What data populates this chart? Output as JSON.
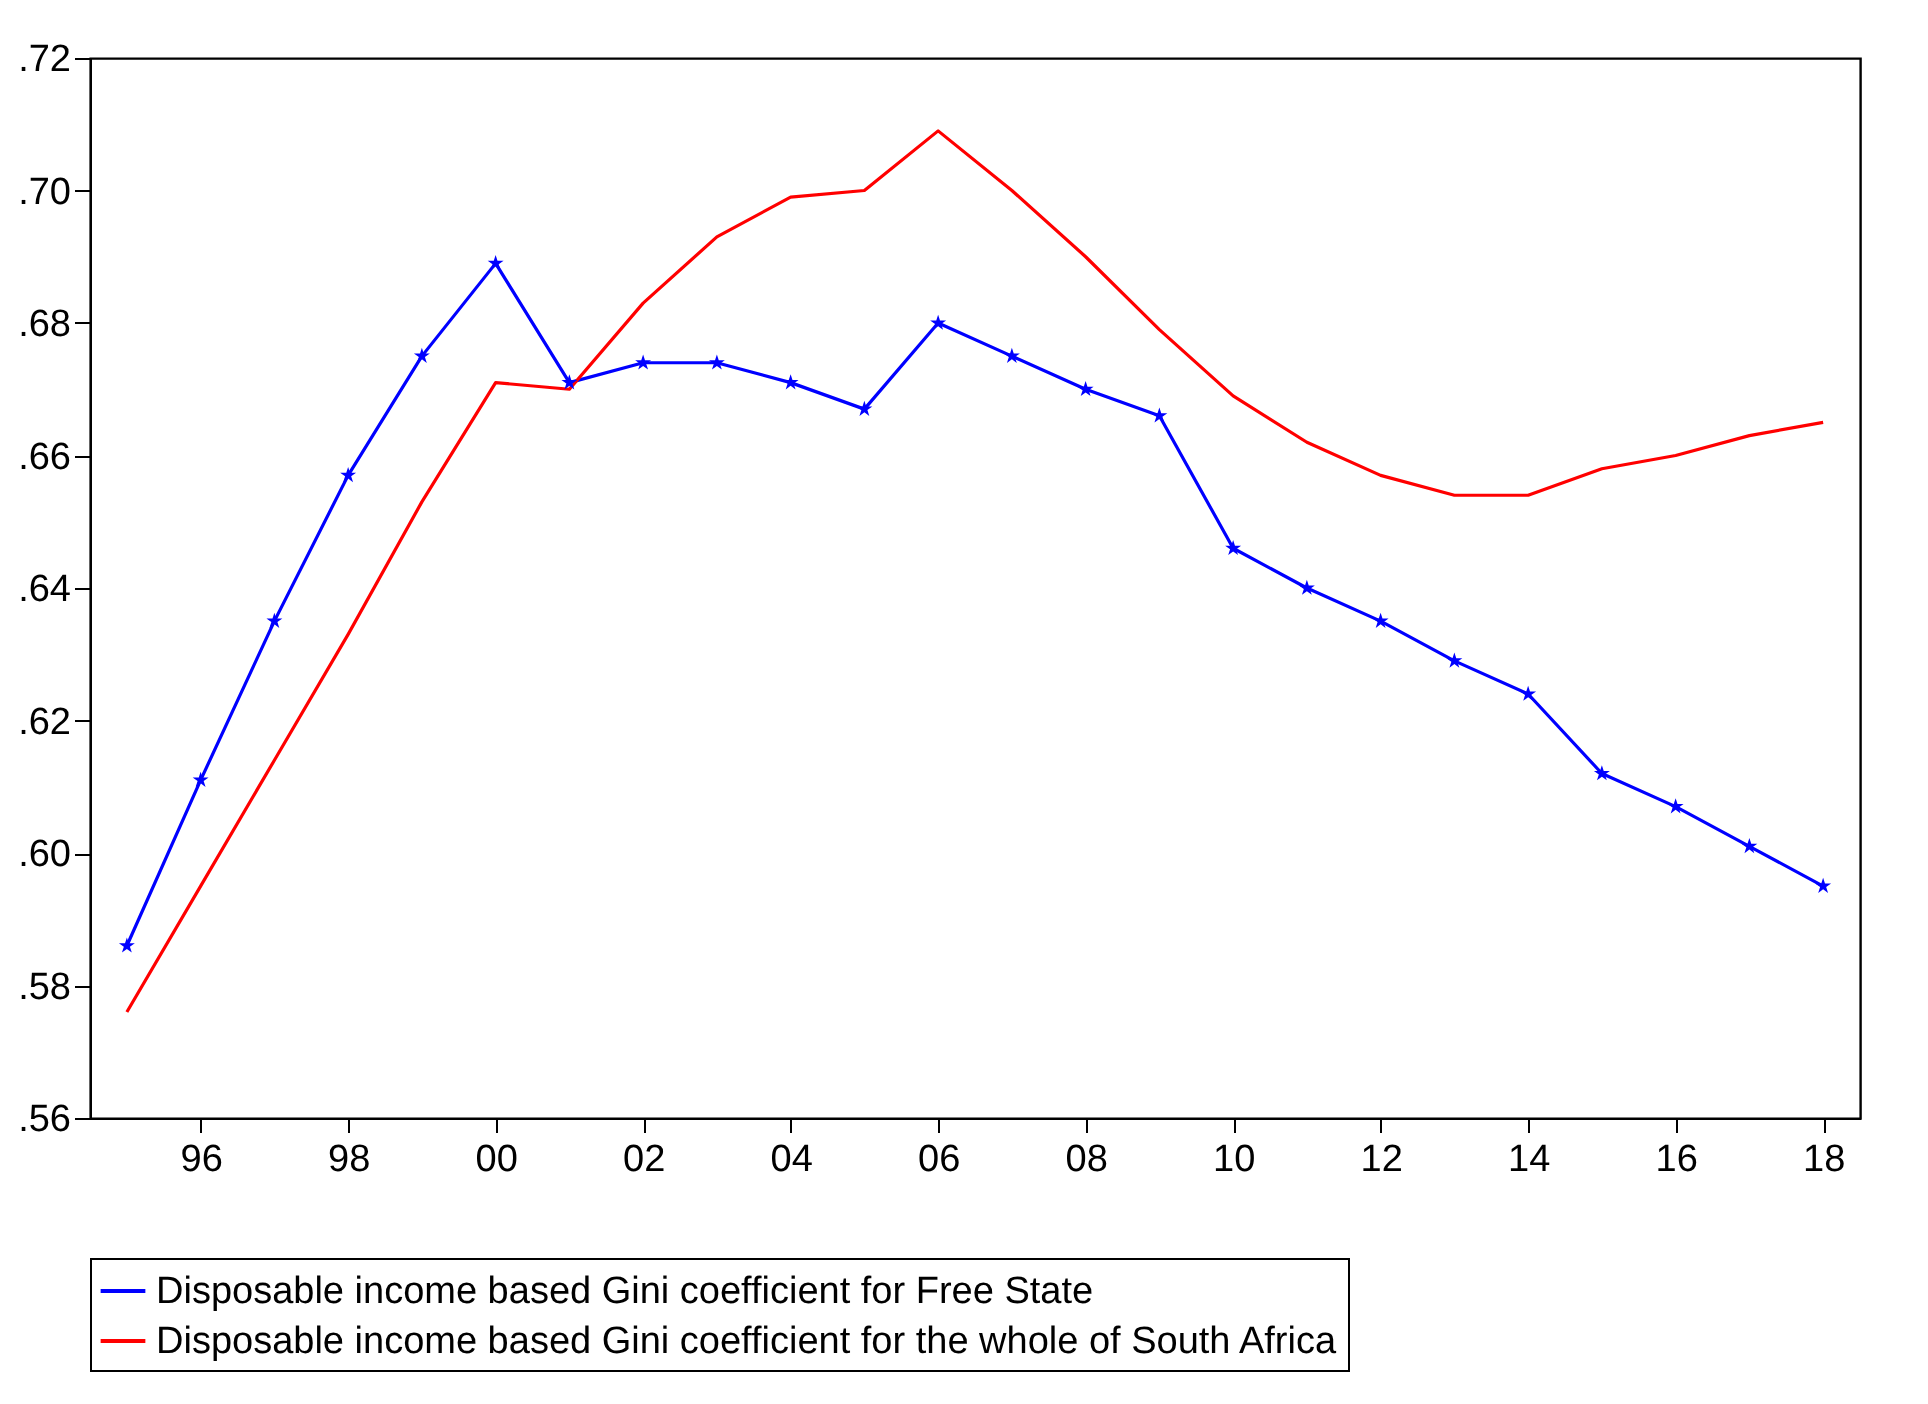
{
  "chart_data": {
    "type": "line",
    "x": [
      1995,
      1996,
      1997,
      1998,
      1999,
      2000,
      2001,
      2002,
      2003,
      2004,
      2005,
      2006,
      2007,
      2008,
      2009,
      2010,
      2011,
      2012,
      2013,
      2014,
      2015,
      2016,
      2017,
      2018
    ],
    "series": [
      {
        "name": "Disposable income based Gini coefficient for Free State",
        "color": "#0000ff",
        "marker": "star",
        "values": [
          0.586,
          0.611,
          0.635,
          0.657,
          0.675,
          0.689,
          0.671,
          0.674,
          0.674,
          0.671,
          0.667,
          0.68,
          0.675,
          0.67,
          0.666,
          0.646,
          0.64,
          0.635,
          0.629,
          0.624,
          0.612,
          0.607,
          0.601,
          0.595
        ]
      },
      {
        "name": "Disposable income based Gini coefficient for the whole of South Africa",
        "color": "#ff0000",
        "marker": "none",
        "values": [
          0.576,
          0.595,
          0.614,
          0.633,
          0.653,
          0.671,
          0.67,
          0.683,
          0.693,
          0.699,
          0.7,
          0.709,
          0.7,
          0.69,
          0.679,
          0.669,
          0.662,
          0.657,
          0.654,
          0.654,
          0.658,
          0.66,
          0.663,
          0.665
        ]
      }
    ],
    "xlim": [
      1994.5,
      2018.5
    ],
    "xticks": [
      {
        "value": 1996,
        "label": "96"
      },
      {
        "value": 1998,
        "label": "98"
      },
      {
        "value": 2000,
        "label": "00"
      },
      {
        "value": 2002,
        "label": "02"
      },
      {
        "value": 2004,
        "label": "04"
      },
      {
        "value": 2006,
        "label": "06"
      },
      {
        "value": 2008,
        "label": "08"
      },
      {
        "value": 2010,
        "label": "10"
      },
      {
        "value": 2012,
        "label": "12"
      },
      {
        "value": 2014,
        "label": "14"
      },
      {
        "value": 2016,
        "label": "16"
      },
      {
        "value": 2018,
        "label": "18"
      }
    ],
    "ylim": [
      0.56,
      0.72
    ],
    "yticks": [
      {
        "value": 0.56,
        "label": ".56"
      },
      {
        "value": 0.58,
        "label": ".58"
      },
      {
        "value": 0.6,
        "label": ".60"
      },
      {
        "value": 0.62,
        "label": ".62"
      },
      {
        "value": 0.64,
        "label": ".64"
      },
      {
        "value": 0.66,
        "label": ".66"
      },
      {
        "value": 0.68,
        "label": ".68"
      },
      {
        "value": 0.7,
        "label": ".70"
      },
      {
        "value": 0.72,
        "label": ".72"
      }
    ],
    "grid": false,
    "legend": "bottom",
    "line_style": "solid"
  }
}
